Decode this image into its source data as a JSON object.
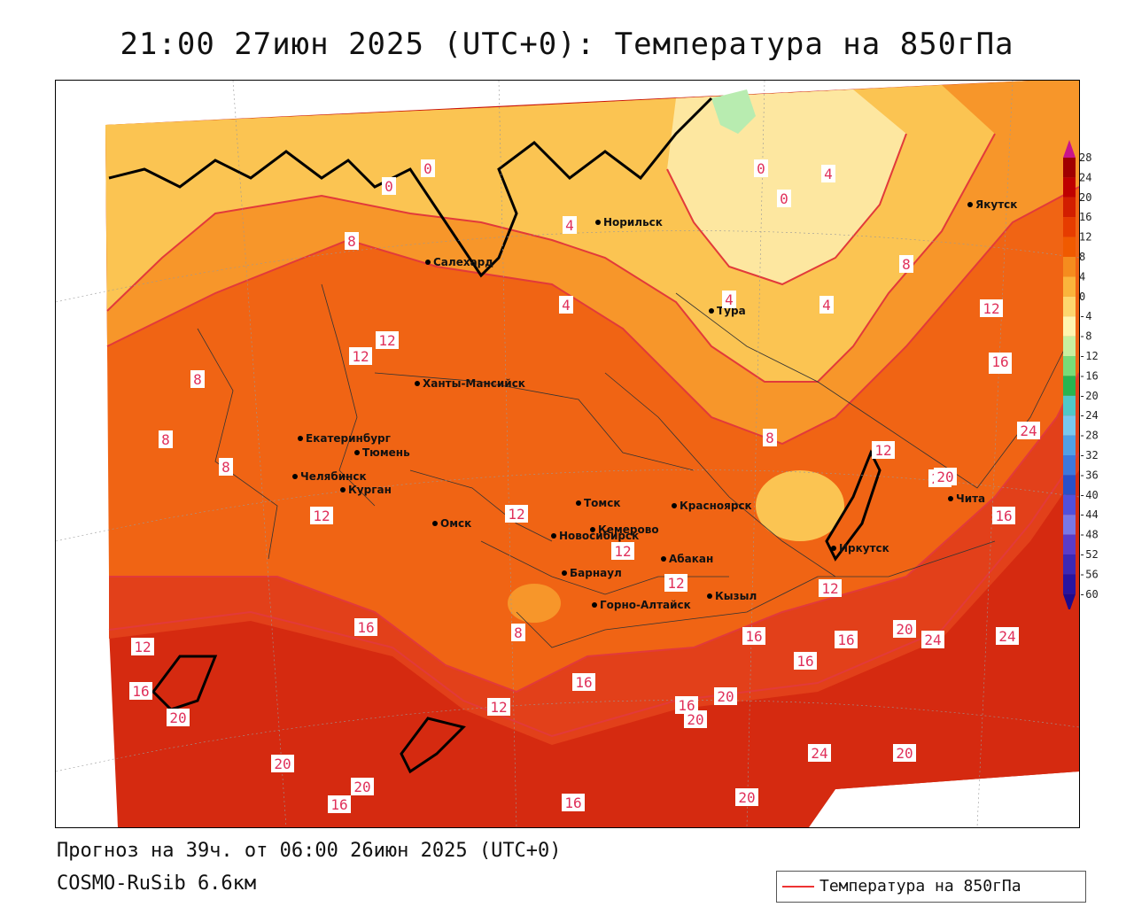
{
  "title": "21:00 27июн 2025 (UTC+0): Температура на 850гПа",
  "footer": {
    "forecast": "Прогноз на 39ч. от 06:00 26июн 2025 (UTC+0)",
    "model": "COSMO-RuSib 6.6км"
  },
  "legend": {
    "label": "Температура на 850гПа",
    "line_color": "#e33333"
  },
  "colorbar": {
    "ticks": [
      "28",
      "24",
      "20",
      "16",
      "12",
      "8",
      "4",
      "0",
      "-4",
      "-8",
      "-12",
      "-16",
      "-20",
      "-24",
      "-28",
      "-32",
      "-36",
      "-40",
      "-44",
      "-48",
      "-52",
      "-56",
      "-60"
    ],
    "colors": [
      "#a00000",
      "#be0000",
      "#d21e00",
      "#e63c00",
      "#f05a00",
      "#f58c1e",
      "#fab43c",
      "#fdd66e",
      "#fff5b0",
      "#c8f0a0",
      "#78dc78",
      "#28b450",
      "#50c8c8",
      "#78c8f0",
      "#50a0e6",
      "#3c78dc",
      "#2850c8",
      "#5050dc",
      "#7878e6",
      "#5a3cc8",
      "#3c28b4",
      "#2814a0"
    ]
  },
  "cities": [
    {
      "name": "Якутск"
    },
    {
      "name": "Норильск"
    },
    {
      "name": "Салехард"
    },
    {
      "name": "Тура"
    },
    {
      "name": "Ханты-Мансийск"
    },
    {
      "name": "Екатеринбург"
    },
    {
      "name": "Тюмень"
    },
    {
      "name": "Челябинск"
    },
    {
      "name": "Курган"
    },
    {
      "name": "Омск"
    },
    {
      "name": "Новосибирск"
    },
    {
      "name": "Томск"
    },
    {
      "name": "Кемерово"
    },
    {
      "name": "Красноярск"
    },
    {
      "name": "Абакан"
    },
    {
      "name": "Барнаул"
    },
    {
      "name": "Горно-Алтайск"
    },
    {
      "name": "Кызыл"
    },
    {
      "name": "Иркутск"
    },
    {
      "name": "Чита"
    }
  ],
  "isotherm_labels": [
    "0",
    "0",
    "0",
    "0",
    "4",
    "4",
    "4",
    "4",
    "4",
    "8",
    "8",
    "8",
    "8",
    "8",
    "8",
    "8",
    "12",
    "12",
    "12",
    "12",
    "12",
    "12",
    "12",
    "12",
    "12",
    "12",
    "12",
    "12",
    "16",
    "16",
    "16",
    "16",
    "16",
    "16",
    "16",
    "16",
    "16",
    "16",
    "16",
    "20",
    "20",
    "20",
    "20",
    "20",
    "20",
    "20",
    "20",
    "20",
    "20",
    "24",
    "24",
    "24",
    "24"
  ]
}
